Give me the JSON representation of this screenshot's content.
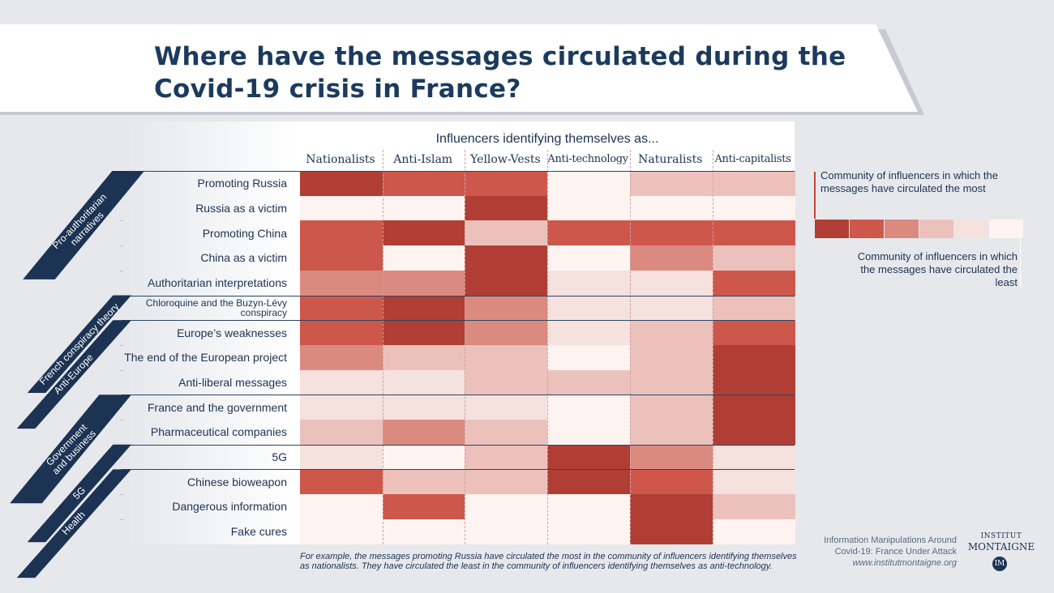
{
  "title": "Where have the messages circulated during the Covid-19 crisis in France?",
  "colors": {
    "navy": "#1c3354",
    "scale": [
      "#b03e35",
      "#ce574c",
      "#db8a80",
      "#ecc1bc",
      "#f5e1de",
      "#fdf4f2"
    ]
  },
  "legend": {
    "most": "Community of influencers in which the messages have circulated the most",
    "least": "Community of influencers in which the messages have circulated the least"
  },
  "footnote": "For example, the messages promoting Russia have circulated the most in the community of influencers identifying themselves as nationalists. They have circulated the least in the community of influencers identifying themselves as anti-technology.",
  "credit": {
    "line1": "Information Manipulations Around",
    "line2": "Covid-19: France Under Attack",
    "url": "www.institutmontaigne.org"
  },
  "logo": {
    "line1": "INSTITUT",
    "line2": "MONTAIGNE",
    "badge": "IM"
  },
  "categories": [
    {
      "label_lines": [
        "Pro-authoritarian",
        "narratives"
      ],
      "row_start": 0,
      "row_end": 4
    },
    {
      "label_lines": [
        "French conspiracy theory"
      ],
      "row_start": 5,
      "row_end": 5
    },
    {
      "label_lines": [
        "Anti-Europe"
      ],
      "row_start": 6,
      "row_end": 8
    },
    {
      "label_lines": [
        "Government",
        "and business"
      ],
      "row_start": 9,
      "row_end": 10
    },
    {
      "label_lines": [
        "5G"
      ],
      "row_start": 11,
      "row_end": 11
    },
    {
      "label_lines": [
        "Health"
      ],
      "row_start": 12,
      "row_end": 14
    }
  ],
  "chart_data": {
    "type": "heatmap",
    "title": "Where have the messages circulated during the Covid-19 crisis in France?",
    "column_group_label": "Influencers identifying themselves as...",
    "columns": [
      "Nationalists",
      "Anti-Islam",
      "Yellow-Vests",
      "Anti-technology",
      "Naturalists",
      "Anti-capitalists"
    ],
    "rows": [
      "Promoting Russia",
      "Russia as a victim",
      "Promoting China",
      "China as a victim",
      "Authoritarian interpretations",
      "Chloroquine and the Buzyn-Lévy conspiracy",
      "Europe’s weaknesses",
      "The end of the European project",
      "Anti-liberal messages",
      "France and the government",
      "Pharmaceutical companies",
      "5G",
      "Chinese bioweapon",
      "Dangerous information",
      "Fake cures"
    ],
    "scale": "1 = community in which the messages have circulated the most, 6 = the least",
    "values": [
      [
        1,
        2,
        2,
        6,
        4,
        4
      ],
      [
        6,
        6,
        1,
        6,
        6,
        6
      ],
      [
        2,
        1,
        4,
        2,
        2,
        2
      ],
      [
        2,
        6,
        1,
        6,
        3,
        4
      ],
      [
        3,
        3,
        1,
        5,
        5,
        2
      ],
      [
        2,
        1,
        3,
        5,
        5,
        4
      ],
      [
        2,
        1,
        3,
        5,
        4,
        2
      ],
      [
        3,
        4,
        4,
        6,
        4,
        1
      ],
      [
        5,
        5,
        4,
        4,
        4,
        1
      ],
      [
        5,
        5,
        5,
        6,
        4,
        1
      ],
      [
        4,
        3,
        4,
        6,
        4,
        1
      ],
      [
        5,
        6,
        4,
        1,
        3,
        5
      ],
      [
        2,
        4,
        4,
        1,
        2,
        5
      ],
      [
        6,
        2,
        6,
        6,
        1,
        4
      ],
      [
        6,
        6,
        6,
        6,
        1,
        6
      ]
    ]
  }
}
